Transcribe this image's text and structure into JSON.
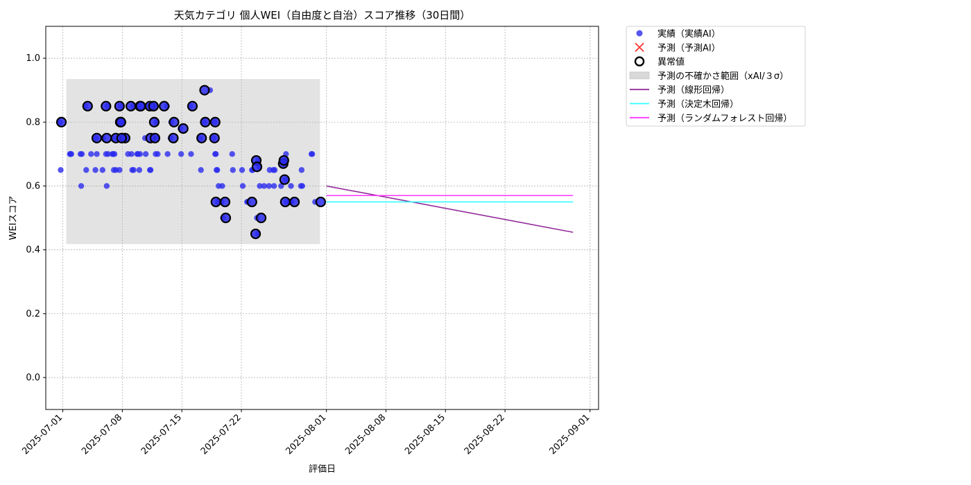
{
  "chart_data": {
    "type": "scatter",
    "title": "天気カテゴリ 個人WEI（自由度と自治）スコア推移（30日間）",
    "xlabel": "評価日",
    "ylabel": "WEIスコア",
    "xlim": [
      "2025-06-29",
      "2025-09-02"
    ],
    "ylim": [
      -0.1,
      1.1
    ],
    "x_ticks": [
      "2025-07-01",
      "2025-07-08",
      "2025-07-15",
      "2025-07-22",
      "2025-08-01",
      "2025-08-08",
      "2025-08-15",
      "2025-08-22",
      "2025-09-01"
    ],
    "y_ticks": [
      "0.0",
      "0.2",
      "0.4",
      "0.6",
      "0.8",
      "1.0"
    ],
    "grid": true,
    "legend_position": "outside-top-right",
    "legend": {
      "actual": "実績（実績AI）",
      "predicted": "予測（予測AI）",
      "anomaly": "異常値",
      "uncertainty": "予測の不確かさ範囲（xAI/３σ）",
      "linear": "予測（線形回帰）",
      "tree": "予測（決定木回帰）",
      "forest": "予測（ランダムフォレスト回帰）"
    },
    "colors": {
      "actual": "#2b2bee",
      "predicted": "#ff3333",
      "anomaly": "#000000",
      "band": "#d9d9d9",
      "linear": "#922b9a",
      "tree": "#33ffff",
      "forest": "#ff33ff"
    },
    "uncertainty_band": {
      "x": [
        "2025-07-01",
        "2025-07-31"
      ],
      "y": [
        0.418,
        0.935
      ]
    },
    "actual": [
      [
        "2025-07-01",
        0.8
      ],
      [
        "2025-07-01",
        0.65
      ],
      [
        "2025-07-02",
        0.7
      ],
      [
        "2025-07-02",
        0.7
      ],
      [
        "2025-07-02",
        0.7
      ],
      [
        "2025-07-03",
        0.7
      ],
      [
        "2025-07-03",
        0.6
      ],
      [
        "2025-07-03",
        0.7
      ],
      [
        "2025-07-04",
        0.7
      ],
      [
        "2025-07-04",
        0.85
      ],
      [
        "2025-07-04",
        0.65
      ],
      [
        "2025-07-05",
        0.65
      ],
      [
        "2025-07-05",
        0.75
      ],
      [
        "2025-07-05",
        0.7
      ],
      [
        "2025-07-06",
        0.7
      ],
      [
        "2025-07-06",
        0.6
      ],
      [
        "2025-07-06",
        0.85
      ],
      [
        "2025-07-06",
        0.7
      ],
      [
        "2025-07-06",
        0.65
      ],
      [
        "2025-07-06",
        0.75
      ],
      [
        "2025-07-07",
        0.7
      ],
      [
        "2025-07-07",
        0.7
      ],
      [
        "2025-07-07",
        0.65
      ],
      [
        "2025-07-07",
        0.7
      ],
      [
        "2025-07-07",
        0.75
      ],
      [
        "2025-07-07",
        0.65
      ],
      [
        "2025-07-08",
        0.75
      ],
      [
        "2025-07-08",
        0.65
      ],
      [
        "2025-07-08",
        0.85
      ],
      [
        "2025-07-08",
        0.8
      ],
      [
        "2025-07-08",
        0.8
      ],
      [
        "2025-07-08",
        0.75
      ],
      [
        "2025-07-09",
        0.7
      ],
      [
        "2025-07-09",
        0.65
      ],
      [
        "2025-07-09",
        0.85
      ],
      [
        "2025-07-09",
        0.65
      ],
      [
        "2025-07-09",
        0.7
      ],
      [
        "2025-07-10",
        0.7
      ],
      [
        "2025-07-10",
        0.7
      ],
      [
        "2025-07-10",
        0.85
      ],
      [
        "2025-07-10",
        0.65
      ],
      [
        "2025-07-10",
        0.7
      ],
      [
        "2025-07-11",
        0.85
      ],
      [
        "2025-07-11",
        0.65
      ],
      [
        "2025-07-11",
        0.65
      ],
      [
        "2025-07-11",
        0.75
      ],
      [
        "2025-07-11",
        0.7
      ],
      [
        "2025-07-12",
        0.85
      ],
      [
        "2025-07-12",
        0.7
      ],
      [
        "2025-07-12",
        0.8
      ],
      [
        "2025-07-12",
        0.75
      ],
      [
        "2025-07-12",
        0.7
      ],
      [
        "2025-07-13",
        0.85
      ],
      [
        "2025-07-13",
        0.7
      ],
      [
        "2025-07-14",
        0.75
      ],
      [
        "2025-07-14",
        0.8
      ],
      [
        "2025-07-15",
        0.78
      ],
      [
        "2025-07-15",
        0.7
      ],
      [
        "2025-07-16",
        0.85
      ],
      [
        "2025-07-16",
        0.7
      ],
      [
        "2025-07-17",
        0.75
      ],
      [
        "2025-07-17",
        0.65
      ],
      [
        "2025-07-18",
        0.9
      ],
      [
        "2025-07-18",
        0.8
      ],
      [
        "2025-07-19",
        0.75
      ],
      [
        "2025-07-19",
        0.8
      ],
      [
        "2025-07-19",
        0.7
      ],
      [
        "2025-07-19",
        0.7
      ],
      [
        "2025-07-19",
        0.65
      ],
      [
        "2025-07-19",
        0.65
      ],
      [
        "2025-07-19",
        0.55
      ],
      [
        "2025-07-19",
        0.6
      ],
      [
        "2025-07-20",
        0.55
      ],
      [
        "2025-07-20",
        0.6
      ],
      [
        "2025-07-20",
        0.5
      ],
      [
        "2025-07-21",
        0.7
      ],
      [
        "2025-07-21",
        0.65
      ],
      [
        "2025-07-22",
        0.65
      ],
      [
        "2025-07-22",
        0.6
      ],
      [
        "2025-07-23",
        0.65
      ],
      [
        "2025-07-23",
        0.65
      ],
      [
        "2025-07-23",
        0.55
      ],
      [
        "2025-07-23",
        0.55
      ],
      [
        "2025-07-24",
        0.5
      ],
      [
        "2025-07-24",
        0.45
      ],
      [
        "2025-07-24",
        0.68
      ],
      [
        "2025-07-24",
        0.66
      ],
      [
        "2025-07-24",
        0.6
      ],
      [
        "2025-07-25",
        0.6
      ],
      [
        "2025-07-25",
        0.65
      ],
      [
        "2025-07-25",
        0.6
      ],
      [
        "2025-07-26",
        0.65
      ],
      [
        "2025-07-26",
        0.6
      ],
      [
        "2025-07-26",
        0.65
      ],
      [
        "2025-07-27",
        0.67
      ],
      [
        "2025-07-27",
        0.68
      ],
      [
        "2025-07-27",
        0.62
      ],
      [
        "2025-07-27",
        0.7
      ],
      [
        "2025-07-27",
        0.55
      ],
      [
        "2025-07-27",
        0.6
      ],
      [
        "2025-07-28",
        0.55
      ],
      [
        "2025-07-28",
        0.6
      ],
      [
        "2025-07-28",
        0.55
      ],
      [
        "2025-07-29",
        0.6
      ],
      [
        "2025-07-29",
        0.65
      ],
      [
        "2025-07-29",
        0.6
      ],
      [
        "2025-07-30",
        0.7
      ],
      [
        "2025-07-30",
        0.7
      ],
      [
        "2025-07-31",
        0.55
      ]
    ],
    "anomalies": [
      [
        "2025-07-01",
        0.8
      ],
      [
        "2025-07-04",
        0.85
      ],
      [
        "2025-07-05",
        0.75
      ],
      [
        "2025-07-06",
        0.85
      ],
      [
        "2025-07-06",
        0.75
      ],
      [
        "2025-07-07",
        0.75
      ],
      [
        "2025-07-08",
        0.75
      ],
      [
        "2025-07-08",
        0.85
      ],
      [
        "2025-07-08",
        0.8
      ],
      [
        "2025-07-08",
        0.8
      ],
      [
        "2025-07-08",
        0.75
      ],
      [
        "2025-07-09",
        0.85
      ],
      [
        "2025-07-10",
        0.85
      ],
      [
        "2025-07-10",
        0.85
      ],
      [
        "2025-07-11",
        0.85
      ],
      [
        "2025-07-11",
        0.75
      ],
      [
        "2025-07-12",
        0.85
      ],
      [
        "2025-07-12",
        0.8
      ],
      [
        "2025-07-12",
        0.75
      ],
      [
        "2025-07-13",
        0.85
      ],
      [
        "2025-07-14",
        0.75
      ],
      [
        "2025-07-14",
        0.8
      ],
      [
        "2025-07-15",
        0.78
      ],
      [
        "2025-07-16",
        0.85
      ],
      [
        "2025-07-17",
        0.75
      ],
      [
        "2025-07-18",
        0.9
      ],
      [
        "2025-07-18",
        0.8
      ],
      [
        "2025-07-19",
        0.75
      ],
      [
        "2025-07-19",
        0.8
      ],
      [
        "2025-07-19",
        0.55
      ],
      [
        "2025-07-20",
        0.55
      ],
      [
        "2025-07-20",
        0.5
      ],
      [
        "2025-07-23",
        0.55
      ],
      [
        "2025-07-24",
        0.5
      ],
      [
        "2025-07-24",
        0.45
      ],
      [
        "2025-07-24",
        0.68
      ],
      [
        "2025-07-24",
        0.66
      ],
      [
        "2025-07-27",
        0.67
      ],
      [
        "2025-07-27",
        0.68
      ],
      [
        "2025-07-27",
        0.62
      ],
      [
        "2025-07-27",
        0.55
      ],
      [
        "2025-07-28",
        0.55
      ],
      [
        "2025-07-31",
        0.55
      ]
    ],
    "linear": [
      [
        "2025-08-01",
        0.6
      ],
      [
        "2025-08-30",
        0.455
      ]
    ],
    "tree": [
      [
        "2025-08-01",
        0.55
      ],
      [
        "2025-08-30",
        0.55
      ]
    ],
    "forest": [
      [
        "2025-08-01",
        0.57
      ],
      [
        "2025-08-30",
        0.57
      ]
    ]
  }
}
